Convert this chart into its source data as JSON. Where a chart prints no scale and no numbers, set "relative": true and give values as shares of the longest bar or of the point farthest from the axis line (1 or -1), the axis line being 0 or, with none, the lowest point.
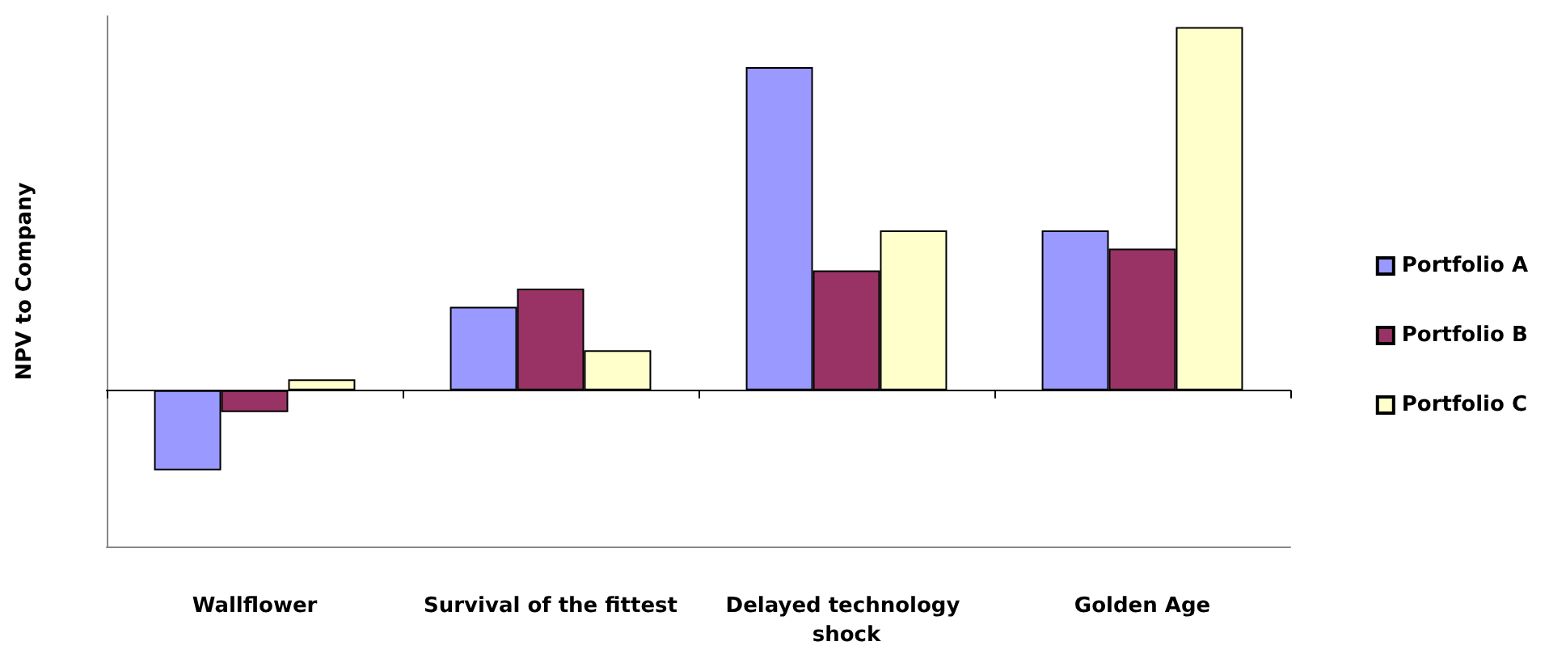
{
  "chart_data": {
    "type": "bar",
    "ylabel": "NPV to Company",
    "relative": true,
    "legend": "right",
    "grid": false,
    "categories": [
      "Wallflower",
      "Survival of the fittest",
      "Delayed technology shock",
      "Golden Age"
    ],
    "series": [
      {
        "name": "Portfolio A",
        "color": "#9999ff",
        "values": [
          -0.22,
          0.23,
          0.89,
          0.44
        ]
      },
      {
        "name": "Portfolio B",
        "color": "#993366",
        "values": [
          -0.06,
          0.28,
          0.33,
          0.39
        ]
      },
      {
        "name": "Portfolio C",
        "color": "#ffffcc",
        "values": [
          0.03,
          0.11,
          0.44,
          1.0
        ]
      }
    ]
  }
}
